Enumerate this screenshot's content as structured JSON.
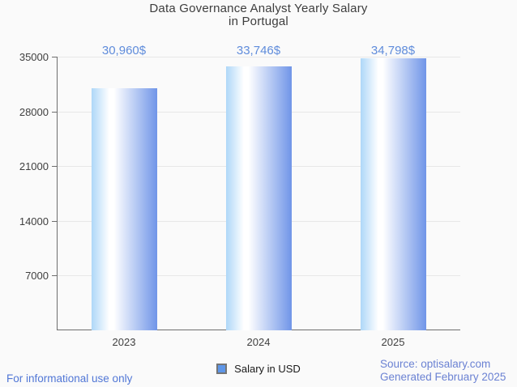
{
  "header": {
    "title_line1": "Data Governance Analyst Yearly Salary",
    "title_line2": "in Portugal"
  },
  "chart_data": {
    "type": "bar",
    "title": "Data Governance Analyst Yearly Salary in Portugal",
    "categories": [
      "2023",
      "2024",
      "2025"
    ],
    "values": [
      30960,
      33746,
      34798
    ],
    "value_labels": [
      "30,960$",
      "33,746$",
      "34,798$"
    ],
    "series": [
      {
        "name": "Salary in USD",
        "values": [
          30960,
          33746,
          34798
        ]
      }
    ],
    "xlabel": "",
    "ylabel": "",
    "ylim": [
      0,
      35000
    ],
    "yticks": [
      7000,
      14000,
      21000,
      28000,
      35000
    ],
    "grid": "horizontal",
    "legend_position": "bottom"
  },
  "legend": {
    "label": "Salary in USD"
  },
  "footer": {
    "left_note": "For informational use only",
    "source": "Source: optisalary.com",
    "generated": "Generated February 2025"
  },
  "colors": {
    "background": "#fafafa",
    "title": "#3d3d3d",
    "axis": "#6e6e6e",
    "grid": "#e7e7e7",
    "tick_label": "#3f3f3f",
    "value_label": "#5f8cdb",
    "legend_text": "#1a1a1a",
    "legend_swatch": "#5e96e8",
    "legend_swatch_border": "#757575",
    "footer_left": "#5177d6",
    "footer_right": "#6b82d3",
    "bar_left": "#aed7f8",
    "bar_mid": "#ffffff",
    "bar_right": "#7095e8"
  }
}
